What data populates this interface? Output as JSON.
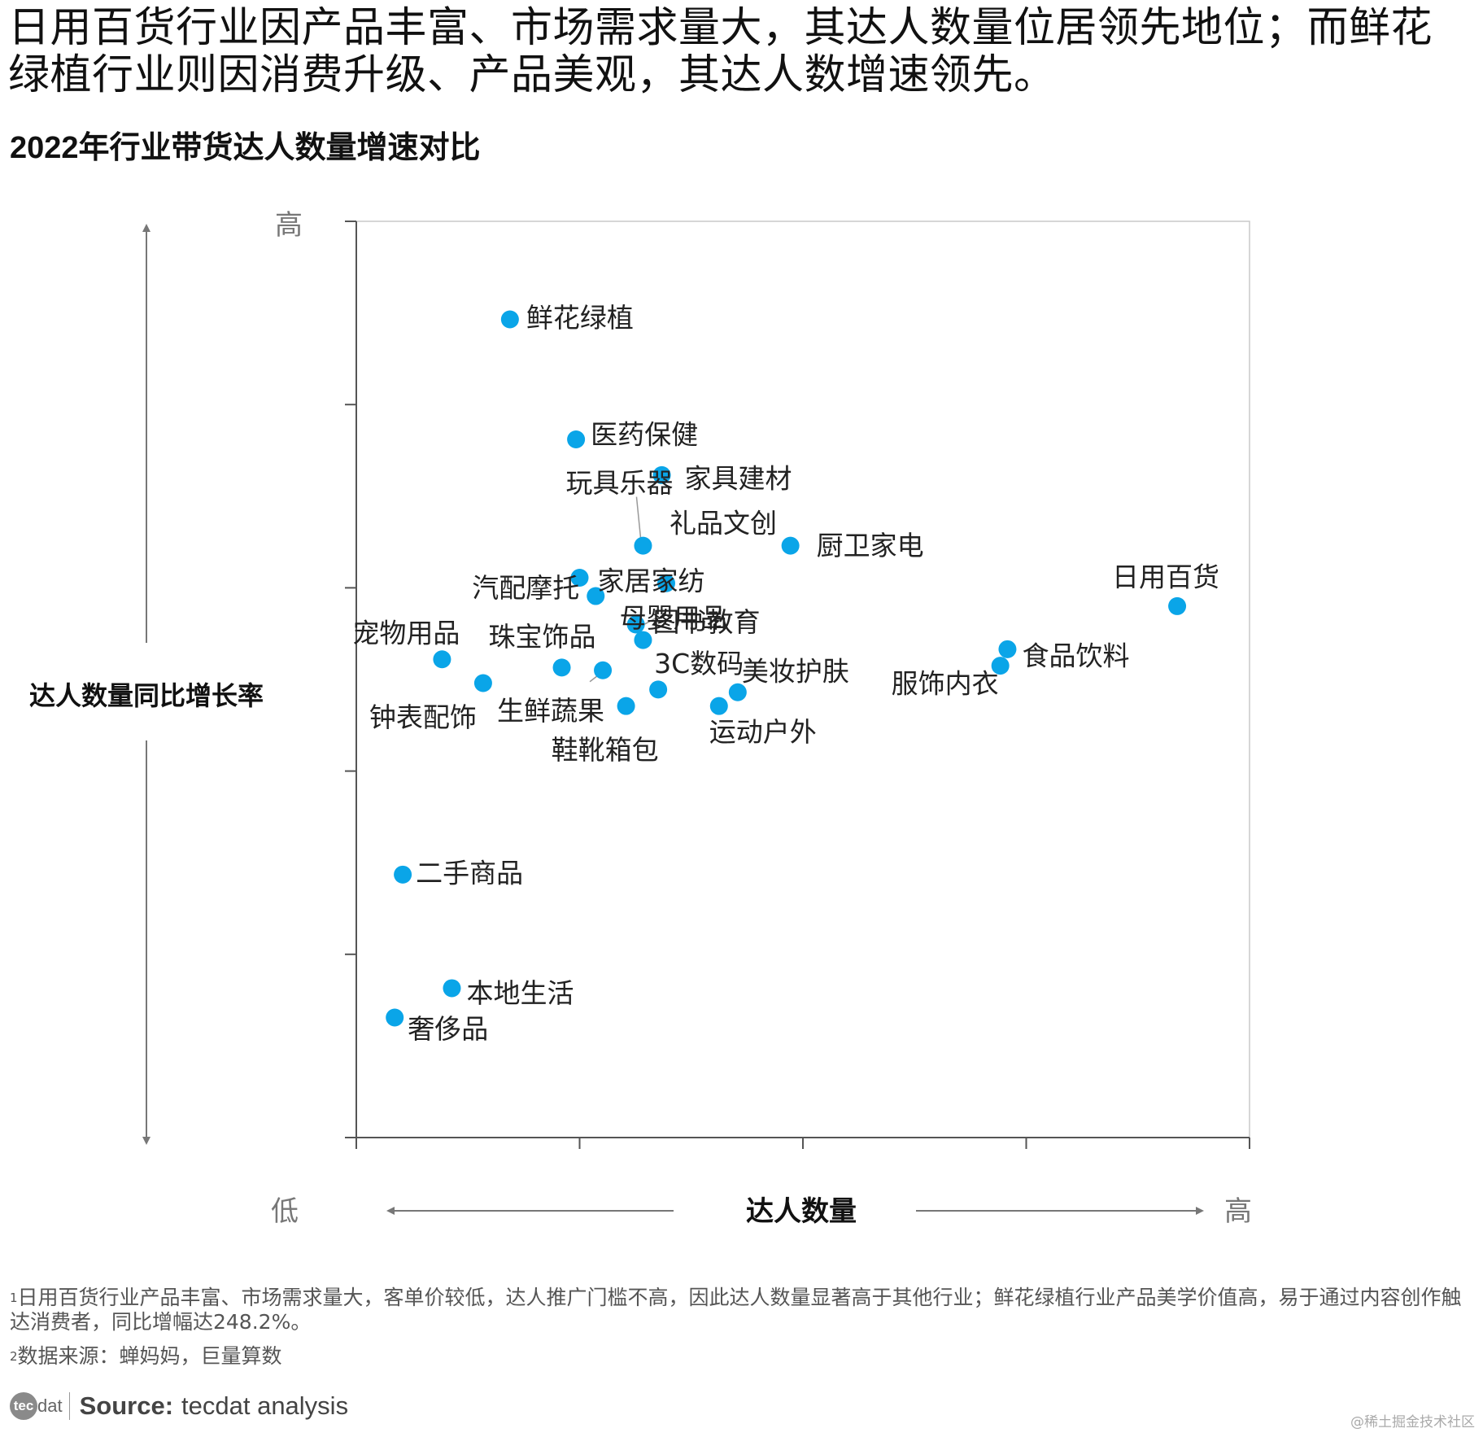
{
  "headline": "日用百货行业因产品丰富、市场需求量大，其达人数量位居领先地位；而鲜花绿植行业则因消费升级、产品美观，其达人数增速领先。",
  "chart_data": {
    "type": "scatter",
    "title": "2022年行业带货达人数量增速对比",
    "xlabel": "达人数量",
    "ylabel": "达人数量同比增长率",
    "x_low_label": "低",
    "x_high_label": "高",
    "y_high_label": "高",
    "xlim": [
      0,
      100
    ],
    "ylim": [
      0,
      100
    ],
    "grid": false,
    "point_color": "#0aa5e8",
    "points": [
      {
        "name": "鲜花绿植",
        "x": 17.2,
        "y": 89.3
      },
      {
        "name": "医药保健",
        "x": 24.6,
        "y": 76.2
      },
      {
        "name": "家具建材",
        "x": 34.2,
        "y": 72.3
      },
      {
        "name": "礼品文创",
        "x": 34.7,
        "y": 60.5
      },
      {
        "name": "厨卫家电",
        "x": 48.6,
        "y": 64.6
      },
      {
        "name": "玩具乐器",
        "x": 32.1,
        "y": 64.6
      },
      {
        "name": "家居家纺",
        "x": 25.0,
        "y": 61.1
      },
      {
        "name": "汽配摩托",
        "x": 26.8,
        "y": 59.1
      },
      {
        "name": "母婴用品",
        "x": 31.3,
        "y": 56.0
      },
      {
        "name": "图书教育",
        "x": 32.1,
        "y": 54.3
      },
      {
        "name": "宠物用品",
        "x": 9.6,
        "y": 52.2
      },
      {
        "name": "珠宝饰品",
        "x": 23.0,
        "y": 51.3
      },
      {
        "name": "钟表配饰",
        "x": 14.2,
        "y": 49.6
      },
      {
        "name": "生鲜蔬果",
        "x": 27.6,
        "y": 51.0
      },
      {
        "name": "3C数码",
        "x": 33.8,
        "y": 48.9
      },
      {
        "name": "美妆护肤",
        "x": 42.7,
        "y": 48.6
      },
      {
        "name": "鞋靴箱包",
        "x": 30.2,
        "y": 47.1
      },
      {
        "name": "运动户外",
        "x": 40.6,
        "y": 47.1
      },
      {
        "name": "日用百货",
        "x": 91.9,
        "y": 58.0
      },
      {
        "name": "食品饮料",
        "x": 72.9,
        "y": 53.3
      },
      {
        "name": "服饰内衣",
        "x": 72.1,
        "y": 51.5
      },
      {
        "name": "二手商品",
        "x": 5.2,
        "y": 28.7
      },
      {
        "name": "本地生活",
        "x": 10.7,
        "y": 16.3
      },
      {
        "name": "奢侈品",
        "x": 4.3,
        "y": 13.1
      }
    ]
  },
  "notes": {
    "note1": "日用百货行业产品丰富、市场需求量大，客单价较低，达人推广门槛不高，因此达人数量显著高于其他行业；鲜花绿植行业产品美学价值高，易于通过内容创作触达消费者，同比增幅达248.2%。",
    "note2": "数据来源：蝉妈妈，巨量算数",
    "sup1": "1",
    "sup2": "2"
  },
  "source": {
    "logo_text": "tec",
    "logo_suffix": "dat",
    "label": "Source:",
    "value": "tecdat analysis"
  },
  "watermark": "@稀土掘金技术社区"
}
